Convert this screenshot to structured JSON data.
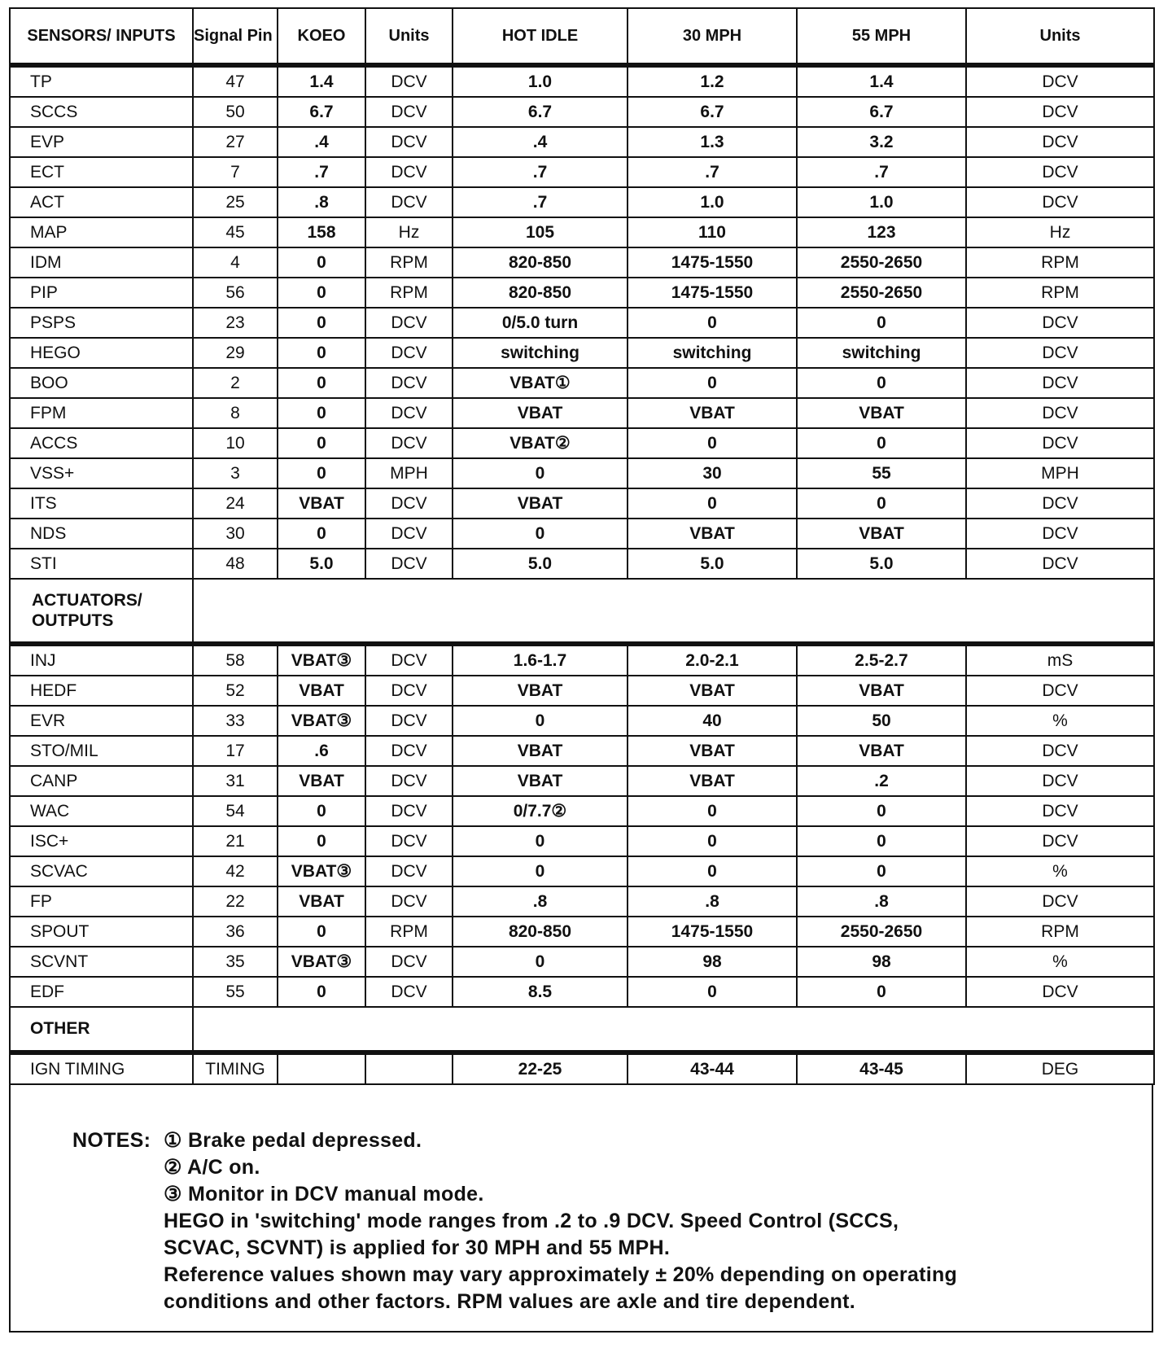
{
  "headers": [
    "SENSORS/ INPUTS",
    "Signal Pin #",
    "KOEO",
    "Units",
    "HOT IDLE",
    "30 MPH",
    "55 MPH",
    "Units"
  ],
  "sensors": [
    [
      "TP",
      "47",
      "1.4",
      "DCV",
      "1.0",
      "1.2",
      "1.4",
      "DCV"
    ],
    [
      "SCCS",
      "50",
      "6.7",
      "DCV",
      "6.7",
      "6.7",
      "6.7",
      "DCV"
    ],
    [
      "EVP",
      "27",
      ".4",
      "DCV",
      ".4",
      "1.3",
      "3.2",
      "DCV"
    ],
    [
      "ECT",
      "7",
      ".7",
      "DCV",
      ".7",
      ".7",
      ".7",
      "DCV"
    ],
    [
      "ACT",
      "25",
      ".8",
      "DCV",
      ".7",
      "1.0",
      "1.0",
      "DCV"
    ],
    [
      "MAP",
      "45",
      "158",
      "Hz",
      "105",
      "110",
      "123",
      "Hz"
    ],
    [
      "IDM",
      "4",
      "0",
      "RPM",
      "820-850",
      "1475-1550",
      "2550-2650",
      "RPM"
    ],
    [
      "PIP",
      "56",
      "0",
      "RPM",
      "820-850",
      "1475-1550",
      "2550-2650",
      "RPM"
    ],
    [
      "PSPS",
      "23",
      "0",
      "DCV",
      "0/5.0 turn",
      "0",
      "0",
      "DCV"
    ],
    [
      "HEGO",
      "29",
      "0",
      "DCV",
      "switching",
      "switching",
      "switching",
      "DCV"
    ],
    [
      "BOO",
      "2",
      "0",
      "DCV",
      "VBAT①",
      "0",
      "0",
      "DCV"
    ],
    [
      "FPM",
      "8",
      "0",
      "DCV",
      "VBAT",
      "VBAT",
      "VBAT",
      "DCV"
    ],
    [
      "ACCS",
      "10",
      "0",
      "DCV",
      "VBAT②",
      "0",
      "0",
      "DCV"
    ],
    [
      "VSS+",
      "3",
      "0",
      "MPH",
      "0",
      "30",
      "55",
      "MPH"
    ],
    [
      "ITS",
      "24",
      "VBAT",
      "DCV",
      "VBAT",
      "0",
      "0",
      "DCV"
    ],
    [
      "NDS",
      "30",
      "0",
      "DCV",
      "0",
      "VBAT",
      "VBAT",
      "DCV"
    ],
    [
      "STI",
      "48",
      "5.0",
      "DCV",
      "5.0",
      "5.0",
      "5.0",
      "DCV"
    ]
  ],
  "actuators_label": "ACTUATORS/ OUTPUTS",
  "actuators": [
    [
      "INJ",
      "58",
      "VBAT③",
      "DCV",
      "1.6-1.7",
      "2.0-2.1",
      "2.5-2.7",
      "mS"
    ],
    [
      "HEDF",
      "52",
      "VBAT",
      "DCV",
      "VBAT",
      "VBAT",
      "VBAT",
      "DCV"
    ],
    [
      "EVR",
      "33",
      "VBAT③",
      "DCV",
      "0",
      "40",
      "50",
      "%"
    ],
    [
      "STO/MIL",
      "17",
      ".6",
      "DCV",
      "VBAT",
      "VBAT",
      "VBAT",
      "DCV"
    ],
    [
      "CANP",
      "31",
      "VBAT",
      "DCV",
      "VBAT",
      "VBAT",
      ".2",
      "DCV"
    ],
    [
      "WAC",
      "54",
      "0",
      "DCV",
      "0/7.7②",
      "0",
      "0",
      "DCV"
    ],
    [
      "ISC+",
      "21",
      "0",
      "DCV",
      "0",
      "0",
      "0",
      "DCV"
    ],
    [
      "SCVAC",
      "42",
      "VBAT③",
      "DCV",
      "0",
      "0",
      "0",
      "%"
    ],
    [
      "FP",
      "22",
      "VBAT",
      "DCV",
      ".8",
      ".8",
      ".8",
      "DCV"
    ],
    [
      "SPOUT",
      "36",
      "0",
      "RPM",
      "820-850",
      "1475-1550",
      "2550-2650",
      "RPM"
    ],
    [
      "SCVNT",
      "35",
      "VBAT③",
      "DCV",
      "0",
      "98",
      "98",
      "%"
    ],
    [
      "EDF",
      "55",
      "0",
      "DCV",
      "8.5",
      "0",
      "0",
      "DCV"
    ]
  ],
  "other_label": "OTHER",
  "other": [
    [
      "IGN TIMING",
      "TIMING",
      "",
      "",
      "22-25",
      "43-44",
      "43-45",
      "DEG"
    ]
  ],
  "notes": {
    "label": "NOTES:",
    "lines": [
      "① Brake pedal depressed.",
      "② A/C on.",
      "③ Monitor in DCV manual mode.",
      "HEGO in 'switching' mode ranges from .2 to .9 DCV. Speed Control (SCCS,",
      "SCVAC, SCVNT) is applied for 30 MPH and 55 MPH.",
      "Reference values shown may vary approximately ± 20% depending on operating",
      "conditions and other factors. RPM values are axle and tire dependent."
    ]
  }
}
